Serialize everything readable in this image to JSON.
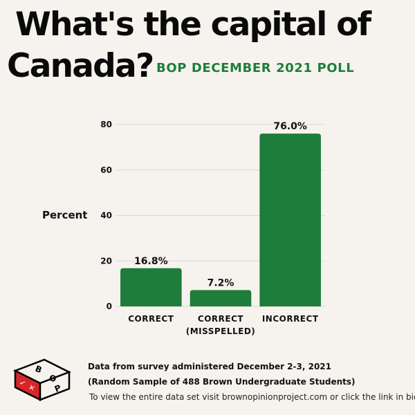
{
  "header": {
    "title_line1": "What's the capital of",
    "title_line2": "Canada?",
    "subtitle": "BOP DECEMBER 2021 POLL",
    "subtitle_color": "#1e7d3a"
  },
  "chart_data": {
    "type": "bar",
    "categories": [
      "CORRECT",
      "CORRECT (MISSPELLED)",
      "INCORRECT"
    ],
    "category_lines": [
      [
        "CORRECT"
      ],
      [
        "CORRECT",
        "(MISSPELLED)"
      ],
      [
        "INCORRECT"
      ]
    ],
    "values": [
      16.8,
      7.2,
      76.0
    ],
    "value_labels": [
      "16.8%",
      "7.2%",
      "76.0%"
    ],
    "ylabel": "Percent",
    "ylim": [
      0,
      80
    ],
    "yticks": [
      0,
      20,
      40,
      60,
      80
    ],
    "grid": true,
    "bar_color": "#1e7d3a"
  },
  "footer": {
    "note1": "Data from survey administered December 2-3, 2021",
    "note2": "(Random Sample of 488 Brown Undergraduate Students)",
    "note3": "To view the entire data set visit brownopinionproject.com or click the link in bio"
  },
  "logo": {
    "letters": [
      "B",
      "O",
      "P"
    ],
    "marks": [
      "✓",
      "✕"
    ]
  }
}
